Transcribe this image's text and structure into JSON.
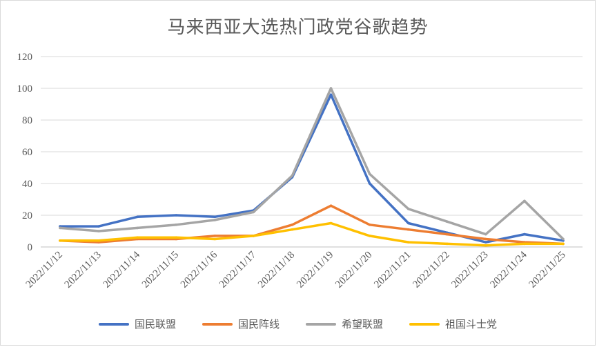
{
  "chart_data": {
    "type": "line",
    "title": "马来西亚大选热门政党谷歌趋势",
    "xlabel": "",
    "ylabel": "",
    "ylim": [
      0,
      120
    ],
    "yticks": [
      "0",
      "20",
      "40",
      "60",
      "80",
      "100",
      "120"
    ],
    "grid": true,
    "legend_position": "bottom",
    "categories": [
      "2022/11/12",
      "2022/11/13",
      "2022/11/14",
      "2022/11/15",
      "2022/11/16",
      "2022/11/17",
      "2022/11/18",
      "2022/11/19",
      "2022/11/20",
      "2022/11/21",
      "2022/11/22",
      "2022/11/23",
      "2022/11/24",
      "2022/11/25"
    ],
    "series": [
      {
        "name": "国民联盟",
        "color": "#4472C4",
        "values": [
          13,
          13,
          19,
          20,
          19,
          23,
          44,
          96,
          40,
          15,
          9,
          3,
          8,
          4
        ]
      },
      {
        "name": "国民阵线",
        "color": "#ED7D31",
        "values": [
          4,
          3,
          5,
          5,
          7,
          7,
          14,
          26,
          14,
          11,
          8,
          5,
          3,
          2
        ]
      },
      {
        "name": "希望联盟",
        "color": "#A5A5A5",
        "values": [
          12,
          10,
          12,
          14,
          17,
          22,
          45,
          100,
          46,
          24,
          16,
          8,
          29,
          5
        ]
      },
      {
        "name": "祖国斗士党",
        "color": "#FFC000",
        "values": [
          4,
          4,
          6,
          6,
          5,
          7,
          11,
          15,
          7,
          3,
          2,
          1,
          2,
          2
        ]
      }
    ]
  }
}
